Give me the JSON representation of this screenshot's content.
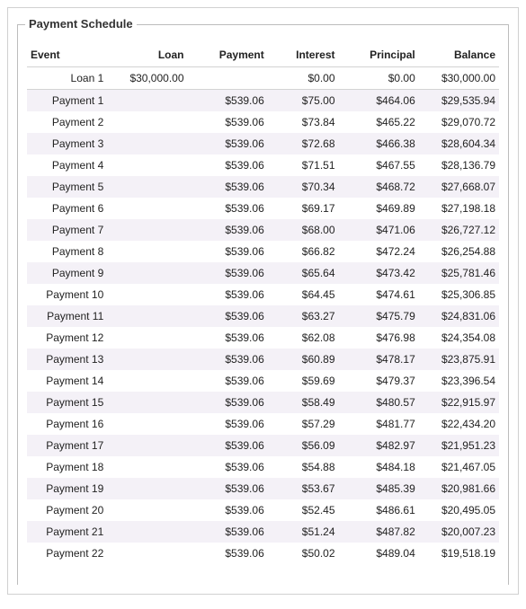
{
  "title": "Payment Schedule",
  "columns": [
    "Event",
    "Loan",
    "Payment",
    "Interest",
    "Principal",
    "Balance"
  ],
  "rows": [
    {
      "event": "Loan 1",
      "loan": "$30,000.00",
      "payment": "",
      "interest": "$0.00",
      "principal": "$0.00",
      "balance": "$30,000.00"
    },
    {
      "event": "Payment 1",
      "loan": "",
      "payment": "$539.06",
      "interest": "$75.00",
      "principal": "$464.06",
      "balance": "$29,535.94"
    },
    {
      "event": "Payment 2",
      "loan": "",
      "payment": "$539.06",
      "interest": "$73.84",
      "principal": "$465.22",
      "balance": "$29,070.72"
    },
    {
      "event": "Payment 3",
      "loan": "",
      "payment": "$539.06",
      "interest": "$72.68",
      "principal": "$466.38",
      "balance": "$28,604.34"
    },
    {
      "event": "Payment 4",
      "loan": "",
      "payment": "$539.06",
      "interest": "$71.51",
      "principal": "$467.55",
      "balance": "$28,136.79"
    },
    {
      "event": "Payment 5",
      "loan": "",
      "payment": "$539.06",
      "interest": "$70.34",
      "principal": "$468.72",
      "balance": "$27,668.07"
    },
    {
      "event": "Payment 6",
      "loan": "",
      "payment": "$539.06",
      "interest": "$69.17",
      "principal": "$469.89",
      "balance": "$27,198.18"
    },
    {
      "event": "Payment 7",
      "loan": "",
      "payment": "$539.06",
      "interest": "$68.00",
      "principal": "$471.06",
      "balance": "$26,727.12"
    },
    {
      "event": "Payment 8",
      "loan": "",
      "payment": "$539.06",
      "interest": "$66.82",
      "principal": "$472.24",
      "balance": "$26,254.88"
    },
    {
      "event": "Payment 9",
      "loan": "",
      "payment": "$539.06",
      "interest": "$65.64",
      "principal": "$473.42",
      "balance": "$25,781.46"
    },
    {
      "event": "Payment 10",
      "loan": "",
      "payment": "$539.06",
      "interest": "$64.45",
      "principal": "$474.61",
      "balance": "$25,306.85"
    },
    {
      "event": "Payment 11",
      "loan": "",
      "payment": "$539.06",
      "interest": "$63.27",
      "principal": "$475.79",
      "balance": "$24,831.06"
    },
    {
      "event": "Payment 12",
      "loan": "",
      "payment": "$539.06",
      "interest": "$62.08",
      "principal": "$476.98",
      "balance": "$24,354.08"
    },
    {
      "event": "Payment 13",
      "loan": "",
      "payment": "$539.06",
      "interest": "$60.89",
      "principal": "$478.17",
      "balance": "$23,875.91"
    },
    {
      "event": "Payment 14",
      "loan": "",
      "payment": "$539.06",
      "interest": "$59.69",
      "principal": "$479.37",
      "balance": "$23,396.54"
    },
    {
      "event": "Payment 15",
      "loan": "",
      "payment": "$539.06",
      "interest": "$58.49",
      "principal": "$480.57",
      "balance": "$22,915.97"
    },
    {
      "event": "Payment 16",
      "loan": "",
      "payment": "$539.06",
      "interest": "$57.29",
      "principal": "$481.77",
      "balance": "$22,434.20"
    },
    {
      "event": "Payment 17",
      "loan": "",
      "payment": "$539.06",
      "interest": "$56.09",
      "principal": "$482.97",
      "balance": "$21,951.23"
    },
    {
      "event": "Payment 18",
      "loan": "",
      "payment": "$539.06",
      "interest": "$54.88",
      "principal": "$484.18",
      "balance": "$21,467.05"
    },
    {
      "event": "Payment 19",
      "loan": "",
      "payment": "$539.06",
      "interest": "$53.67",
      "principal": "$485.39",
      "balance": "$20,981.66"
    },
    {
      "event": "Payment 20",
      "loan": "",
      "payment": "$539.06",
      "interest": "$52.45",
      "principal": "$486.61",
      "balance": "$20,495.05"
    },
    {
      "event": "Payment 21",
      "loan": "",
      "payment": "$539.06",
      "interest": "$51.24",
      "principal": "$487.82",
      "balance": "$20,007.23"
    },
    {
      "event": "Payment 22",
      "loan": "",
      "payment": "$539.06",
      "interest": "$50.02",
      "principal": "$489.04",
      "balance": "$19,518.19"
    }
  ],
  "styling": {
    "type": "table",
    "background_color": "#ffffff",
    "border_color": "#bcbcbc",
    "outer_border_color": "#d0d0d0",
    "stripe_color": "#f4f1f7",
    "text_color": "#222222",
    "header_divider_color": "#d3d3d3",
    "font_family": "Arial",
    "header_fontsize_pt": 9,
    "body_fontsize_pt": 9,
    "title_fontsize_pt": 10,
    "column_alignment": [
      "right",
      "right",
      "right",
      "right",
      "right",
      "right"
    ]
  }
}
